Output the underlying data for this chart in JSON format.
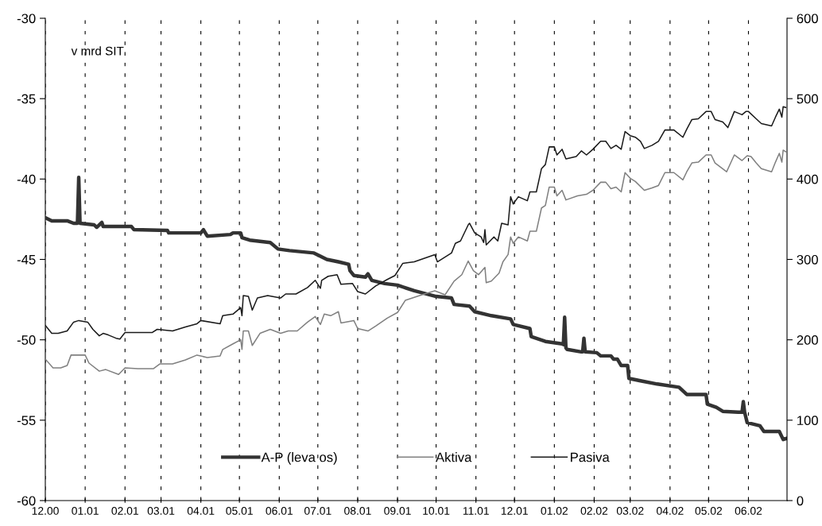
{
  "chart_data": {
    "type": "line",
    "annotations": [
      "v mrd SIT"
    ],
    "xlim": [
      "2000-12-01",
      "2002-07-01"
    ],
    "xticks": [
      {
        "value": "2000-12-01",
        "label": "12.00"
      },
      {
        "value": "2001-01-01",
        "label": "01.01"
      },
      {
        "value": "2001-02-01",
        "label": "02.01"
      },
      {
        "value": "2001-03-01",
        "label": "03.01"
      },
      {
        "value": "2001-04-01",
        "label": "04.01"
      },
      {
        "value": "2001-05-01",
        "label": "05.01"
      },
      {
        "value": "2001-06-01",
        "label": "06.01"
      },
      {
        "value": "2001-07-01",
        "label": "07.01"
      },
      {
        "value": "2001-08-01",
        "label": "08.01"
      },
      {
        "value": "2001-09-01",
        "label": "09.01"
      },
      {
        "value": "2001-10-01",
        "label": "10.01"
      },
      {
        "value": "2001-11-01",
        "label": "11.01"
      },
      {
        "value": "2001-12-01",
        "label": "12.01"
      },
      {
        "value": "2002-01-01",
        "label": "01.02"
      },
      {
        "value": "2002-02-01",
        "label": "02.02"
      },
      {
        "value": "2002-03-01",
        "label": "03.02"
      },
      {
        "value": "2002-04-01",
        "label": "04.02"
      },
      {
        "value": "2002-05-01",
        "label": "05.02"
      },
      {
        "value": "2002-06-01",
        "label": "06.02"
      }
    ],
    "ylim": [
      -60,
      -30
    ],
    "yticks": [
      -60,
      -55,
      -50,
      -45,
      -40,
      -35,
      -30
    ],
    "y2lim": [
      0,
      600
    ],
    "y2ticks": [
      0,
      100,
      200,
      300,
      400,
      500,
      600
    ],
    "grid": "x",
    "legend": "bottom",
    "line_style": "solid",
    "series": [
      {
        "name": "A-P (leva os)",
        "color": "#333333",
        "axis": "y",
        "x": [
          "2000-12-01",
          "2000-12-06",
          "2000-12-18",
          "2000-12-23",
          "2000-12-26",
          "2000-12-27",
          "2000-12-28",
          "2001-01-08",
          "2001-01-10",
          "2001-01-14",
          "2001-01-15",
          "2001-02-06",
          "2001-02-08",
          "2001-03-06",
          "2001-03-07",
          "2001-04-01",
          "2001-04-03",
          "2001-04-06",
          "2001-04-24",
          "2001-04-26",
          "2001-05-02",
          "2001-05-03",
          "2001-05-09",
          "2001-05-25",
          "2001-05-31",
          "2001-06-09",
          "2001-06-28",
          "2001-07-08",
          "2001-07-17",
          "2001-07-25",
          "2001-07-26",
          "2001-07-29",
          "2001-08-07",
          "2001-08-09",
          "2001-08-12",
          "2001-08-22",
          "2001-09-01",
          "2001-09-14",
          "2001-10-01",
          "2001-10-13",
          "2001-10-15",
          "2001-10-27",
          "2001-10-31",
          "2001-11-13",
          "2001-11-28",
          "2001-11-30",
          "2001-12-13",
          "2001-12-14",
          "2001-12-25",
          "2002-01-07",
          "2002-01-08",
          "2002-01-09",
          "2002-01-10",
          "2002-01-11",
          "2002-01-22",
          "2002-01-23",
          "2002-01-24",
          "2002-01-25",
          "2002-02-03",
          "2002-02-06",
          "2002-02-14",
          "2002-02-16",
          "2002-02-19",
          "2002-02-22",
          "2002-02-27",
          "2002-02-28",
          "2002-03-09",
          "2002-03-22",
          "2002-04-08",
          "2002-04-14",
          "2002-04-29",
          "2002-04-30",
          "2002-05-07",
          "2002-05-12",
          "2002-05-24",
          "2002-05-27",
          "2002-05-28",
          "2002-05-29",
          "2002-05-31",
          "2002-06-10",
          "2002-06-13",
          "2002-06-25",
          "2002-06-28",
          "2002-06-30"
        ],
        "values": [
          -42.4,
          -42.6,
          -42.6,
          -42.75,
          -42.75,
          -39.9,
          -42.75,
          -42.85,
          -43.0,
          -42.7,
          -42.95,
          -42.95,
          -43.15,
          -43.2,
          -43.35,
          -43.35,
          -43.15,
          -43.55,
          -43.45,
          -43.35,
          -43.35,
          -43.65,
          -43.8,
          -43.95,
          -44.35,
          -44.45,
          -44.6,
          -45.0,
          -45.15,
          -45.3,
          -45.7,
          -46.0,
          -46.1,
          -45.9,
          -46.3,
          -46.5,
          -46.6,
          -46.95,
          -47.3,
          -47.4,
          -47.8,
          -47.9,
          -48.25,
          -48.5,
          -48.7,
          -49.05,
          -49.3,
          -49.8,
          -50.1,
          -50.25,
          -50.3,
          -48.6,
          -50.5,
          -50.6,
          -50.75,
          -50.75,
          -49.9,
          -50.75,
          -50.8,
          -51.0,
          -51.0,
          -51.2,
          -51.2,
          -51.6,
          -51.6,
          -52.4,
          -52.55,
          -52.75,
          -52.95,
          -53.4,
          -53.4,
          -54.0,
          -54.2,
          -54.45,
          -54.5,
          -54.5,
          -53.85,
          -54.5,
          -55.15,
          -55.35,
          -55.7,
          -55.7,
          -56.2,
          -56.15
        ]
      },
      {
        "name": "Aktiva",
        "color": "#808080",
        "axis": "y2",
        "x": [
          "2000-12-01",
          "2000-12-07",
          "2000-12-13",
          "2000-12-18",
          "2000-12-21",
          "2001-01-01",
          "2001-01-04",
          "2001-01-12",
          "2001-01-17",
          "2001-01-27",
          "2001-02-01",
          "2001-02-11",
          "2001-02-23",
          "2001-02-28",
          "2001-03-10",
          "2001-03-20",
          "2001-03-29",
          "2001-04-06",
          "2001-04-16",
          "2001-04-18",
          "2001-04-26",
          "2001-05-02",
          "2001-05-03",
          "2001-05-04",
          "2001-05-08",
          "2001-05-11",
          "2001-05-17",
          "2001-05-25",
          "2001-06-02",
          "2001-06-08",
          "2001-06-15",
          "2001-06-23",
          "2001-06-29",
          "2001-07-03",
          "2001-07-06",
          "2001-07-11",
          "2001-07-17",
          "2001-07-19",
          "2001-07-29",
          "2001-08-01",
          "2001-08-09",
          "2001-08-15",
          "2001-08-24",
          "2001-09-01",
          "2001-09-07",
          "2001-09-20",
          "2001-09-30",
          "2001-10-08",
          "2001-10-15",
          "2001-10-21",
          "2001-10-26",
          "2001-10-30",
          "2001-11-03",
          "2001-11-08",
          "2001-11-09",
          "2001-11-13",
          "2001-11-19",
          "2001-11-22",
          "2001-11-26",
          "2001-11-28",
          "2001-11-30",
          "2001-12-04",
          "2001-12-11",
          "2001-12-13",
          "2001-12-18",
          "2001-12-22",
          "2001-12-25",
          "2001-12-28",
          "2002-01-01",
          "2002-01-03",
          "2002-01-07",
          "2002-01-10",
          "2002-01-19",
          "2002-01-26",
          "2002-01-31",
          "2002-02-06",
          "2002-02-10",
          "2002-02-14",
          "2002-02-18",
          "2002-02-22",
          "2002-02-25",
          "2002-03-01",
          "2002-03-05",
          "2002-03-12",
          "2002-03-18",
          "2002-03-23",
          "2002-03-28",
          "2002-04-04",
          "2002-04-11",
          "2002-04-14",
          "2002-04-18",
          "2002-04-23",
          "2002-04-29",
          "2002-05-03",
          "2002-05-06",
          "2002-05-15",
          "2002-05-21",
          "2002-05-27",
          "2002-05-31",
          "2002-06-03",
          "2002-06-07",
          "2002-06-11",
          "2002-06-19",
          "2002-06-22",
          "2002-06-25",
          "2002-06-27",
          "2002-06-28",
          "2002-06-30"
        ],
        "values": [
          176,
          165,
          165,
          168,
          181,
          181,
          171,
          161,
          163,
          157,
          165,
          164,
          164,
          170,
          170,
          175,
          181,
          178,
          180,
          188,
          195,
          200,
          188,
          211,
          211,
          193,
          208,
          213,
          208,
          211,
          211,
          222,
          229,
          219,
          232,
          230,
          235,
          221,
          224,
          214,
          211,
          217,
          227,
          234,
          249,
          256,
          261,
          256,
          273,
          281,
          298,
          286,
          281,
          290,
          271,
          273,
          283,
          297,
          306,
          328,
          320,
          328,
          323,
          335,
          335,
          364,
          367,
          390,
          390,
          379,
          386,
          374,
          379,
          381,
          386,
          396,
          396,
          388,
          390,
          384,
          408,
          401,
          397,
          386,
          389,
          392,
          408,
          408,
          399,
          409,
          420,
          421,
          430,
          430,
          420,
          409,
          430,
          423,
          429,
          428,
          420,
          413,
          409,
          421,
          432,
          421,
          436,
          434
        ]
      },
      {
        "name": "Pasiva",
        "color": "#1a1a1a",
        "axis": "y2",
        "x": [
          "2000-12-01",
          "2000-12-06",
          "2000-12-11",
          "2000-12-18",
          "2000-12-23",
          "2000-12-27",
          "2001-01-03",
          "2001-01-07",
          "2001-01-12",
          "2001-01-15",
          "2001-01-19",
          "2001-01-25",
          "2001-01-28",
          "2001-02-01",
          "2001-02-11",
          "2001-02-22",
          "2001-02-26",
          "2001-03-10",
          "2001-03-20",
          "2001-03-29",
          "2001-04-01",
          "2001-04-16",
          "2001-04-18",
          "2001-04-26",
          "2001-05-02",
          "2001-05-03",
          "2001-05-04",
          "2001-05-08",
          "2001-05-11",
          "2001-05-15",
          "2001-05-23",
          "2001-06-02",
          "2001-06-06",
          "2001-06-14",
          "2001-06-23",
          "2001-06-29",
          "2001-07-03",
          "2001-07-04",
          "2001-07-09",
          "2001-07-16",
          "2001-07-19",
          "2001-07-28",
          "2001-08-01",
          "2001-08-07",
          "2001-08-15",
          "2001-08-24",
          "2001-08-30",
          "2001-09-05",
          "2001-09-14",
          "2001-09-30",
          "2001-10-02",
          "2001-10-13",
          "2001-10-16",
          "2001-10-20",
          "2001-10-26",
          "2001-10-27",
          "2001-10-31",
          "2001-11-05",
          "2001-11-07",
          "2001-11-08",
          "2001-11-09",
          "2001-11-15",
          "2001-11-18",
          "2001-11-21",
          "2001-11-26",
          "2001-11-28",
          "2001-11-30",
          "2001-12-04",
          "2001-12-11",
          "2001-12-13",
          "2001-12-18",
          "2001-12-22",
          "2001-12-25",
          "2001-12-28",
          "2002-01-01",
          "2002-01-03",
          "2002-01-07",
          "2002-01-10",
          "2002-01-18",
          "2002-01-22",
          "2002-01-26",
          "2002-01-31",
          "2002-02-06",
          "2002-02-10",
          "2002-02-14",
          "2002-02-18",
          "2002-02-22",
          "2002-02-25",
          "2002-03-01",
          "2002-03-05",
          "2002-03-09",
          "2002-03-12",
          "2002-03-18",
          "2002-03-23",
          "2002-03-28",
          "2002-04-04",
          "2002-04-11",
          "2002-04-14",
          "2002-04-18",
          "2002-04-23",
          "2002-04-29",
          "2002-05-03",
          "2002-05-06",
          "2002-05-12",
          "2002-05-16",
          "2002-05-21",
          "2002-05-27",
          "2002-05-30",
          "2002-06-01",
          "2002-06-07",
          "2002-06-11",
          "2002-06-19",
          "2002-06-22",
          "2002-06-25",
          "2002-06-27",
          "2002-06-28",
          "2002-06-30"
        ],
        "values": [
          218,
          208,
          208,
          211,
          222,
          224,
          222,
          213,
          205,
          208,
          206,
          202,
          201,
          209,
          209,
          209,
          213,
          211,
          216,
          220,
          224,
          220,
          230,
          232,
          240,
          230,
          255,
          254,
          237,
          252,
          255,
          252,
          257,
          257,
          265,
          274,
          264,
          274,
          279,
          281,
          269,
          270,
          260,
          257,
          267,
          275,
          280,
          295,
          297,
          306,
          297,
          308,
          320,
          323,
          343,
          345,
          333,
          328,
          321,
          337,
          318,
          328,
          323,
          345,
          343,
          378,
          369,
          378,
          373,
          384,
          384,
          413,
          418,
          440,
          440,
          430,
          437,
          425,
          428,
          435,
          430,
          437,
          447,
          447,
          438,
          442,
          437,
          459,
          454,
          452,
          447,
          438,
          442,
          447,
          461,
          461,
          452,
          462,
          474,
          475,
          484,
          484,
          474,
          471,
          464,
          484,
          480,
          484,
          484,
          475,
          469,
          466,
          477,
          487,
          477,
          490,
          489
        ]
      }
    ]
  }
}
